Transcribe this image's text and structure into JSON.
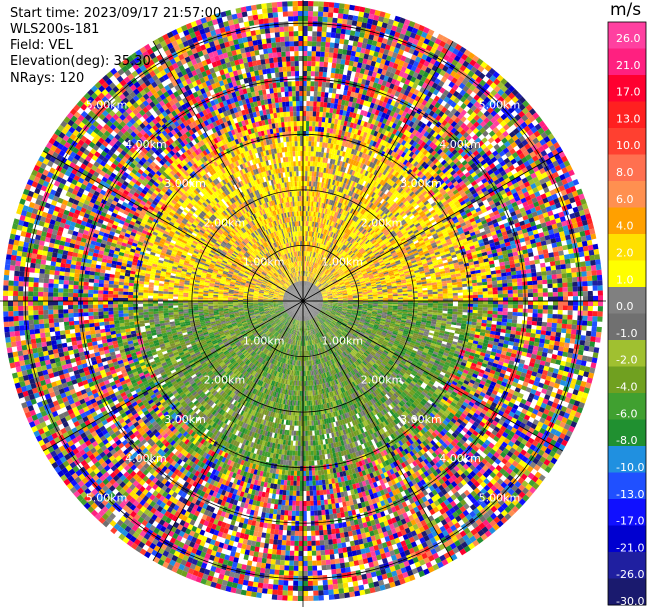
{
  "header": {
    "start_time": "Start time: 2023/09/17 21:57:00",
    "station": "WLS200s-181",
    "field": "Field: VEL",
    "elevation": "Elevation(deg): 35.30",
    "nrays": "NRays: 120"
  },
  "chart_data": {
    "type": "heatmap",
    "projection": "polar-ppi",
    "field": "VEL",
    "rays": 120,
    "range_rings_km": [
      1.0,
      2.0,
      3.0,
      4.0,
      5.0
    ],
    "ring_labels": {
      "1": "1.00km",
      "2": "2.00km",
      "3": "3.00km",
      "4": "4.00km",
      "5": "5.00km"
    },
    "colorbar": {
      "unit": "m/s",
      "ticks": [
        "26.0",
        "21.0",
        "17.0",
        "13.0",
        "10.0",
        "8.0",
        "6.0",
        "4.0",
        "2.0",
        "1.0",
        "0.0",
        "-1.0",
        "-2.0",
        "-4.0",
        "-6.0",
        "-8.0",
        "-10.0",
        "-13.0",
        "-17.0",
        "-21.0",
        "-26.0",
        "-30.0"
      ],
      "colors": [
        "#1a1a6e",
        "#1f1fa0",
        "#0000d0",
        "#1010ff",
        "#2050ff",
        "#2090e0",
        "#209030",
        "#40a030",
        "#70a020",
        "#a0c030",
        "#707070",
        "#808080",
        "#ffff00",
        "#ffe000",
        "#ffa000",
        "#ff9050",
        "#ff7050",
        "#ff4030",
        "#ff2020",
        "#ff0030",
        "#ff2080",
        "#ff40a0"
      ]
    },
    "pattern": {
      "north_half": "positive (yellow/orange) velocities within ~3 km",
      "south_half": "negative (green) velocities within ~3 km",
      "outer": "noisy speckle beyond ~3 km"
    }
  }
}
